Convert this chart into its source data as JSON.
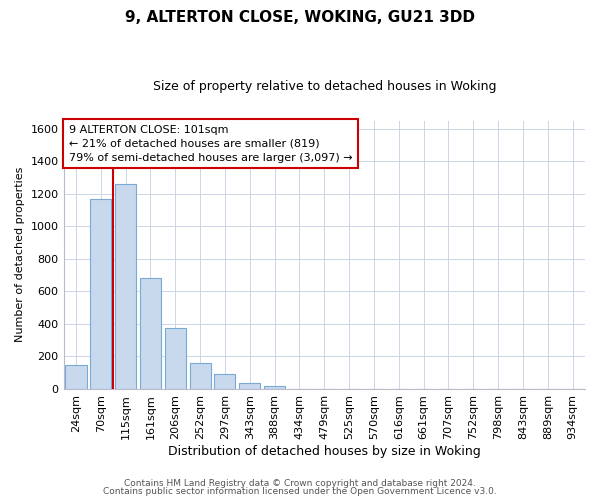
{
  "title": "9, ALTERTON CLOSE, WOKING, GU21 3DD",
  "subtitle": "Size of property relative to detached houses in Woking",
  "xlabel": "Distribution of detached houses by size in Woking",
  "ylabel": "Number of detached properties",
  "bar_labels": [
    "24sqm",
    "70sqm",
    "115sqm",
    "161sqm",
    "206sqm",
    "252sqm",
    "297sqm",
    "343sqm",
    "388sqm",
    "434sqm",
    "479sqm",
    "525sqm",
    "570sqm",
    "616sqm",
    "661sqm",
    "707sqm",
    "752sqm",
    "798sqm",
    "843sqm",
    "889sqm",
    "934sqm"
  ],
  "bar_values": [
    148,
    1170,
    1260,
    685,
    375,
    160,
    90,
    35,
    20,
    0,
    0,
    0,
    0,
    0,
    0,
    0,
    0,
    0,
    0,
    0,
    0
  ],
  "bar_color": "#c8d9ee",
  "bar_edge_color": "#7aaad4",
  "ylim": [
    0,
    1650
  ],
  "yticks": [
    0,
    200,
    400,
    600,
    800,
    1000,
    1200,
    1400,
    1600
  ],
  "property_line_color": "#cc0000",
  "property_line_x": 1.5,
  "annotation_title": "9 ALTERTON CLOSE: 101sqm",
  "annotation_line1": "← 21% of detached houses are smaller (819)",
  "annotation_line2": "79% of semi-detached houses are larger (3,097) →",
  "footer1": "Contains HM Land Registry data © Crown copyright and database right 2024.",
  "footer2": "Contains public sector information licensed under the Open Government Licence v3.0.",
  "background_color": "#ffffff",
  "grid_color": "#ccd6e8",
  "title_fontsize": 11,
  "subtitle_fontsize": 9,
  "xlabel_fontsize": 9,
  "ylabel_fontsize": 8,
  "tick_fontsize": 8,
  "annot_fontsize": 8,
  "footer_fontsize": 6.5
}
